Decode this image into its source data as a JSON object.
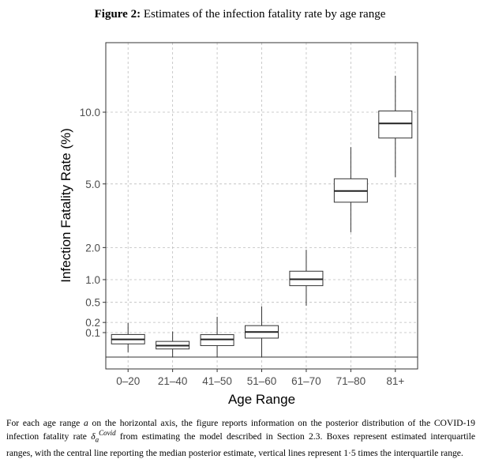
{
  "figure": {
    "label": "Figure 2:",
    "title": "Estimates of the infection fatality rate by age range"
  },
  "chart_data": {
    "type": "boxplot",
    "title": "Estimates of the infection fatality rate by age range",
    "xlabel": "Age Range",
    "ylabel": "Infection Fatality Rate (%)",
    "y_scale": "sqrt",
    "ylim": [
      0,
      16
    ],
    "y_ticks": [
      0.1,
      0.2,
      0.5,
      1.0,
      2.0,
      5.0,
      10.0
    ],
    "y_tick_labels": [
      "0.1",
      "0.2",
      "0.5",
      "1.0",
      "2.0",
      "5.0",
      "10.0"
    ],
    "grid": true,
    "categories": [
      "0–20",
      "21–40",
      "41–50",
      "51–60",
      "61–70",
      "71–80",
      "81+"
    ],
    "boxes": [
      {
        "category": "0–20",
        "whisker_low": 0.004,
        "q1": 0.029,
        "median": 0.052,
        "q3": 0.085,
        "whisker_high": 0.195
      },
      {
        "category": "21–40",
        "whisker_low": 0.0,
        "q1": 0.011,
        "median": 0.022,
        "q3": 0.041,
        "whisker_high": 0.11
      },
      {
        "category": "41–50",
        "whisker_low": 0.0,
        "q1": 0.022,
        "median": 0.052,
        "q3": 0.084,
        "whisker_high": 0.27
      },
      {
        "category": "51–60",
        "whisker_low": 0.0,
        "q1": 0.06,
        "median": 0.105,
        "q3": 0.165,
        "whisker_high": 0.43
      },
      {
        "category": "61–70",
        "whisker_low": 0.44,
        "q1": 0.85,
        "median": 1.01,
        "q3": 1.23,
        "whisker_high": 1.92
      },
      {
        "category": "71–80",
        "whisker_low": 2.6,
        "q1": 4.0,
        "median": 4.6,
        "q3": 5.3,
        "whisker_high": 7.35
      },
      {
        "category": "81+",
        "whisker_low": 5.4,
        "q1": 8.0,
        "median": 9.1,
        "q3": 10.1,
        "whisker_high": 13.2
      }
    ]
  },
  "caption": {
    "part1": "For each age range ",
    "var_a": "a",
    "part2": " on the horizontal axis, the figure reports information on the posterior distribution of the COVID-19 infection fatality rate ",
    "delta_symbol": "δ",
    "delta_sup": "Covid",
    "delta_sub": "a",
    "part3": " from estimating the model described in Section 2.3. Boxes represent estimated interquartile ranges, with the central line reporting the median posterior estimate, vertical lines represent 1·5 times the interquartile range."
  }
}
